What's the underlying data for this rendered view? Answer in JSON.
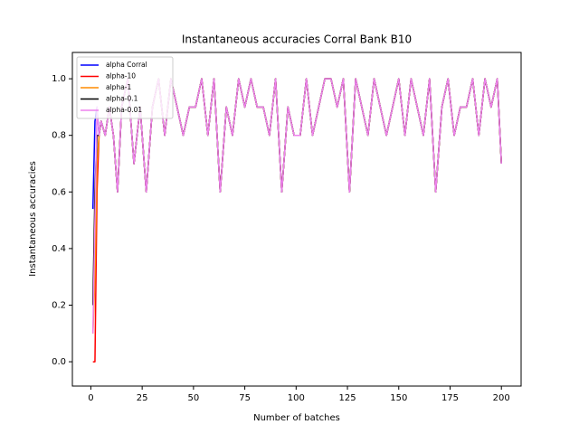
{
  "chart_data": {
    "type": "line",
    "title": "Instantaneous accuracies Corral Bank B10",
    "xlabel": "Number of batches",
    "ylabel": "Instantaneous accuracies",
    "x": [
      1,
      2,
      3,
      4,
      5,
      7,
      9,
      11,
      13,
      15,
      18,
      21,
      24,
      27,
      30,
      33,
      36,
      39,
      42,
      45,
      48,
      51,
      54,
      57,
      60,
      63,
      66,
      69,
      72,
      75,
      78,
      81,
      84,
      87,
      90,
      93,
      96,
      99,
      102,
      105,
      108,
      111,
      114,
      117,
      120,
      123,
      126,
      129,
      132,
      135,
      138,
      141,
      144,
      147,
      150,
      153,
      156,
      159,
      162,
      165,
      168,
      171,
      174,
      177,
      180,
      183,
      186,
      189,
      192,
      195,
      198,
      200
    ],
    "series": [
      {
        "name": "alpha Corral",
        "color": "#0000ff",
        "values": [
          0.54,
          0.85,
          0.9,
          0.8,
          0.85,
          0.8,
          0.9,
          0.8,
          0.6,
          0.9,
          1.0,
          0.7,
          0.9,
          0.6,
          0.9,
          1.0,
          0.8,
          1.0,
          0.9,
          0.8,
          0.9,
          0.9,
          1.0,
          0.8,
          1.0,
          0.6,
          0.9,
          0.8,
          1.0,
          0.9,
          1.0,
          0.9,
          0.9,
          0.8,
          1.0,
          0.6,
          0.9,
          0.8,
          0.8,
          1.0,
          0.8,
          0.9,
          1.0,
          1.0,
          0.9,
          1.0,
          0.6,
          1.0,
          0.9,
          0.8,
          1.0,
          0.9,
          0.8,
          0.9,
          1.0,
          0.8,
          1.0,
          0.9,
          0.8,
          1.0,
          0.6,
          0.9,
          1.0,
          0.8,
          0.9,
          0.9,
          1.0,
          0.8,
          1.0,
          0.9,
          1.0,
          0.7
        ]
      },
      {
        "name": "alpha-10",
        "color": "#ff0000",
        "values": [
          0,
          0,
          0.6,
          0.8,
          0.85,
          0.8,
          0.9,
          0.8,
          0.6,
          0.9,
          1.0,
          0.7,
          0.9,
          0.6,
          0.9,
          1.0,
          0.8,
          1.0,
          0.9,
          0.8,
          0.9,
          0.9,
          1.0,
          0.8,
          1.0,
          0.6,
          0.9,
          0.8,
          1.0,
          0.9,
          1.0,
          0.9,
          0.9,
          0.8,
          1.0,
          0.6,
          0.9,
          0.8,
          0.8,
          1.0,
          0.8,
          0.9,
          1.0,
          1.0,
          0.9,
          1.0,
          0.6,
          1.0,
          0.9,
          0.8,
          1.0,
          0.9,
          0.8,
          0.9,
          1.0,
          0.8,
          1.0,
          0.9,
          0.8,
          1.0,
          0.6,
          0.9,
          1.0,
          0.8,
          0.9,
          0.9,
          1.0,
          0.8,
          1.0,
          0.9,
          1.0,
          0.7
        ]
      },
      {
        "name": "alpha-1",
        "color": "#ff8c00",
        "values": [
          0.1,
          0.3,
          0.7,
          0.8,
          0.85,
          0.8,
          0.9,
          0.8,
          0.6,
          0.9,
          1.0,
          0.7,
          0.9,
          0.6,
          0.9,
          1.0,
          0.8,
          1.0,
          0.9,
          0.8,
          0.9,
          0.9,
          1.0,
          0.8,
          1.0,
          0.6,
          0.9,
          0.8,
          1.0,
          0.9,
          1.0,
          0.9,
          0.9,
          0.8,
          1.0,
          0.6,
          0.9,
          0.8,
          0.8,
          1.0,
          0.8,
          0.9,
          1.0,
          1.0,
          0.9,
          1.0,
          0.6,
          1.0,
          0.9,
          0.8,
          1.0,
          0.9,
          0.8,
          0.9,
          1.0,
          0.8,
          1.0,
          0.9,
          0.8,
          1.0,
          0.6,
          0.9,
          1.0,
          0.8,
          0.9,
          0.9,
          1.0,
          0.8,
          1.0,
          0.9,
          1.0,
          0.7
        ]
      },
      {
        "name": "alpha-0.1",
        "color": "#000000",
        "values": [
          0.2,
          0.6,
          0.8,
          0.8,
          0.85,
          0.8,
          0.9,
          0.8,
          0.6,
          0.9,
          1.0,
          0.7,
          0.9,
          0.6,
          0.9,
          1.0,
          0.8,
          1.0,
          0.9,
          0.8,
          0.9,
          0.9,
          1.0,
          0.8,
          1.0,
          0.6,
          0.9,
          0.8,
          1.0,
          0.9,
          1.0,
          0.9,
          0.9,
          0.8,
          1.0,
          0.6,
          0.9,
          0.8,
          0.8,
          1.0,
          0.8,
          0.9,
          1.0,
          1.0,
          0.9,
          1.0,
          0.6,
          1.0,
          0.9,
          0.8,
          1.0,
          0.9,
          0.8,
          0.9,
          1.0,
          0.8,
          1.0,
          0.9,
          0.8,
          1.0,
          0.6,
          0.9,
          1.0,
          0.8,
          0.9,
          0.9,
          1.0,
          0.8,
          1.0,
          0.9,
          1.0,
          0.7
        ]
      },
      {
        "name": "alpha-0.01",
        "color": "#ee82ee",
        "values": [
          0.1,
          0.5,
          0.9,
          0.8,
          0.85,
          0.8,
          0.9,
          0.8,
          0.6,
          0.9,
          1.0,
          0.7,
          0.9,
          0.6,
          0.9,
          1.0,
          0.8,
          1.0,
          0.9,
          0.8,
          0.9,
          0.9,
          1.0,
          0.8,
          1.0,
          0.6,
          0.9,
          0.8,
          1.0,
          0.9,
          1.0,
          0.9,
          0.9,
          0.8,
          1.0,
          0.6,
          0.9,
          0.8,
          0.8,
          1.0,
          0.8,
          0.9,
          1.0,
          1.0,
          0.9,
          1.0,
          0.6,
          1.0,
          0.9,
          0.8,
          1.0,
          0.9,
          0.8,
          0.9,
          1.0,
          0.8,
          1.0,
          0.9,
          0.8,
          1.0,
          0.6,
          0.9,
          1.0,
          0.8,
          0.9,
          0.9,
          1.0,
          0.8,
          1.0,
          0.9,
          1.0,
          0.7
        ]
      }
    ],
    "xlim": [
      -9,
      209.6
    ],
    "ylim": [
      -0.086,
      1.093
    ],
    "xticks": [
      0,
      25,
      50,
      75,
      100,
      125,
      150,
      175,
      200
    ],
    "yticks": [
      {
        "value": 0,
        "label": "0.0"
      },
      {
        "value": 0.2,
        "label": "0.2"
      },
      {
        "value": 0.4,
        "label": "0.4"
      },
      {
        "value": 0.6,
        "label": "0.6"
      },
      {
        "value": 0.8,
        "label": "0.8"
      },
      {
        "value": 1,
        "label": "1.0"
      }
    ],
    "legend": "upper left"
  }
}
